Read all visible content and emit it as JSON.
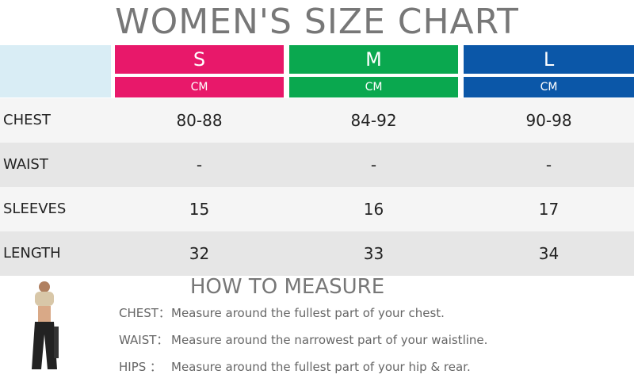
{
  "title": "WOMEN'S SIZE CHART",
  "table": {
    "sizes": [
      {
        "name": "S",
        "unit": "CM"
      },
      {
        "name": "M",
        "unit": "CM"
      },
      {
        "name": "L",
        "unit": "CM"
      }
    ],
    "rows": [
      {
        "label": "CHEST",
        "values": [
          "80-88",
          "84-92",
          "90-98"
        ]
      },
      {
        "label": "WAIST",
        "values": [
          "-",
          "-",
          "-"
        ]
      },
      {
        "label": "SLEEVES",
        "values": [
          "15",
          "16",
          "17"
        ]
      },
      {
        "label": "LENGTH",
        "values": [
          "32",
          "33",
          "34"
        ]
      }
    ]
  },
  "measure": {
    "title": "HOW TO MEASURE",
    "items": [
      {
        "label": "CHEST：",
        "text": "Measure around the fullest part of your chest."
      },
      {
        "label": "WAIST：",
        "text": "Measure around the narrowest part of your waistline."
      },
      {
        "label": "HIPS ：",
        "text": "Measure around the fullest part of your hip & rear."
      }
    ]
  }
}
